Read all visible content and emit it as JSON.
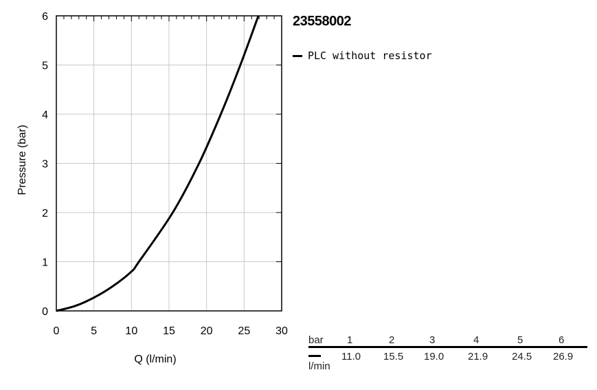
{
  "chart_data": {
    "type": "line",
    "title": "23558002",
    "xlabel": "Q (l/min)",
    "ylabel": "Pressure (bar)",
    "xlim": [
      0,
      30
    ],
    "ylim": [
      0,
      6
    ],
    "xticks": [
      "0",
      "5",
      "10",
      "15",
      "20",
      "25",
      "30"
    ],
    "yticks": [
      "0",
      "1",
      "2",
      "3",
      "4",
      "5",
      "6"
    ],
    "grid": true,
    "legend_position": "top-right",
    "series": [
      {
        "name": "PLC without resistor",
        "color": "#000000",
        "x": [
          0,
          2.5,
          5,
          7.5,
          10,
          11.0,
          15.5,
          19.0,
          21.9,
          24.5,
          26.9
        ],
        "y": [
          0,
          0.1,
          0.27,
          0.5,
          0.8,
          1,
          2,
          3,
          4,
          5,
          6
        ]
      }
    ]
  },
  "table": {
    "row_header": "bar",
    "unit": "l/min",
    "pressures": [
      "1",
      "2",
      "3",
      "4",
      "5",
      "6"
    ],
    "flows": [
      "11.0",
      "15.5",
      "19.0",
      "21.9",
      "24.5",
      "26.9"
    ]
  }
}
